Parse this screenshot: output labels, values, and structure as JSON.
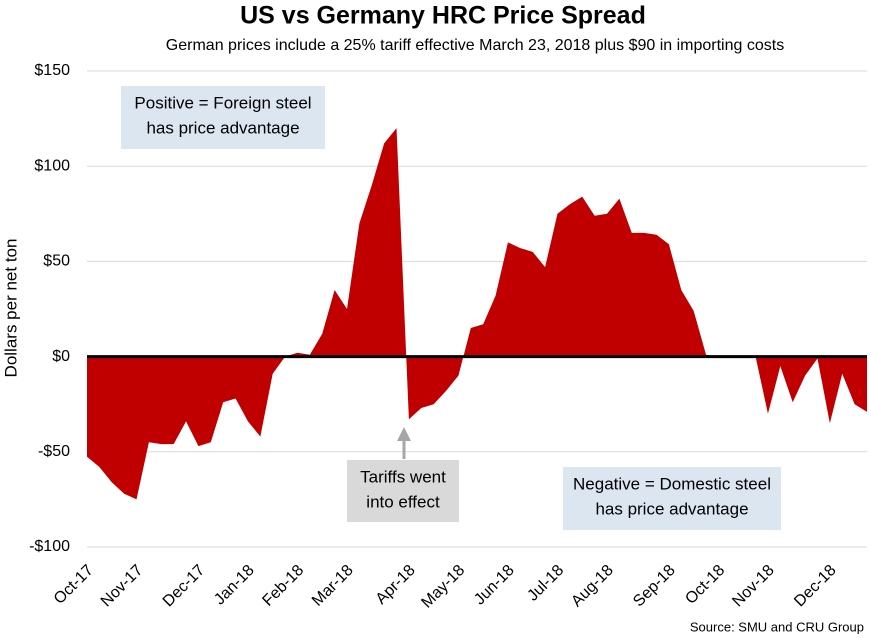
{
  "chart_data": {
    "type": "area",
    "title": "US vs Germany HRC Price Spread",
    "subtitle": "German prices include a 25% tariff effective March 23, 2018 plus $90 in importing costs",
    "y_label": "Dollars per net ton",
    "source": "Source: SMU and CRU Group",
    "color": "#c00000",
    "grid": true,
    "ylim": [
      -100,
      150
    ],
    "yticks": [
      {
        "value": -100,
        "label": "-$100"
      },
      {
        "value": -50,
        "label": "-$50"
      },
      {
        "value": 0,
        "label": "$0"
      },
      {
        "value": 50,
        "label": "$50"
      },
      {
        "value": 100,
        "label": "$100"
      },
      {
        "value": 150,
        "label": "$150"
      }
    ],
    "categories": [
      "Oct-17",
      null,
      null,
      null,
      "Nov-17",
      null,
      null,
      null,
      null,
      "Dec-17",
      null,
      null,
      null,
      "Jan-18",
      null,
      null,
      null,
      "Feb-18",
      null,
      null,
      null,
      "Mar-18",
      null,
      null,
      null,
      null,
      "Apr-18",
      null,
      null,
      null,
      "May-18",
      null,
      null,
      null,
      "Jun-18",
      null,
      null,
      null,
      "Jul-18",
      null,
      null,
      null,
      "Aug-18",
      null,
      null,
      null,
      null,
      "Sep-18",
      null,
      null,
      null,
      "Oct-18",
      null,
      null,
      null,
      "Nov-18",
      null,
      null,
      null,
      null,
      "Dec-18",
      null,
      null,
      null
    ],
    "values": [
      -52.6,
      -58,
      -66,
      -72,
      -75,
      -45,
      -46,
      -46,
      -34,
      -47,
      -45,
      -24,
      -22,
      -34,
      -42,
      -9,
      0,
      2,
      1,
      12,
      35,
      25,
      70,
      90,
      112,
      120,
      -33,
      -27,
      -25,
      -18,
      -10,
      15,
      17,
      32,
      60,
      57,
      55,
      47,
      75,
      80,
      84,
      74,
      75,
      83,
      65,
      65,
      64,
      59,
      35,
      24,
      1,
      0,
      0,
      0,
      0,
      -30,
      -5,
      -24,
      -10,
      -1,
      -35,
      -9,
      -25,
      -29
    ],
    "annotations": [
      {
        "lines": [
          "Positive = Foreign steel",
          "has price advantage"
        ]
      },
      {
        "lines": [
          "Tariffs went",
          "into effect"
        ]
      },
      {
        "lines": [
          "Negative = Domestic steel",
          "has price advantage"
        ]
      }
    ]
  }
}
